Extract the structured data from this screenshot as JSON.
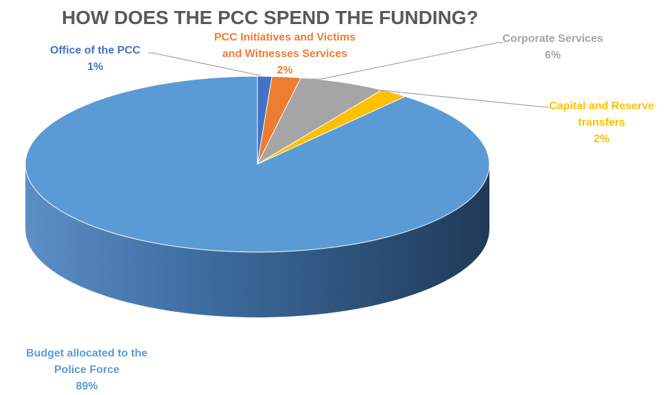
{
  "chart_data": {
    "type": "pie",
    "title": "HOW DOES THE PCC SPEND THE FUNDING?",
    "slices": [
      {
        "name": "Office of the PCC",
        "label_lines": [
          "Office of the PCC"
        ],
        "value": 1,
        "value_label": "1%",
        "color": "#4472C4"
      },
      {
        "name": "PCC Initiatives and Victims and Witnesses Services",
        "label_lines": [
          "PCC Initiatives and Victims",
          "and Witnesses Services"
        ],
        "value": 2,
        "value_label": "2%",
        "color": "#ED7D31"
      },
      {
        "name": "Corporate Services",
        "label_lines": [
          "Corporate Services"
        ],
        "value": 6,
        "value_label": "6%",
        "color": "#A5A5A5"
      },
      {
        "name": "Capital and Reserve transfers",
        "label_lines": [
          "Capital and Reserve",
          "transfers"
        ],
        "value": 2,
        "value_label": "2%",
        "color": "#FFC000"
      },
      {
        "name": "Budget allocated to the Police Force",
        "label_lines": [
          "Budget allocated to the",
          "Police Force"
        ],
        "value": 89,
        "value_label": "89%",
        "color": "#5B9BD5"
      }
    ],
    "legend": "none",
    "style": "3d-pie"
  }
}
